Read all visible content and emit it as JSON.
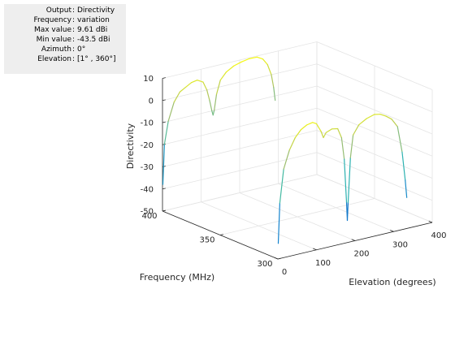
{
  "info": {
    "rows": [
      {
        "key": "Output",
        "value": "Directivity"
      },
      {
        "key": "Frequency",
        "value": "variation"
      },
      {
        "key": "Max value",
        "value": "9.61 dBi"
      },
      {
        "key": "Min value",
        "value": "-43.5 dBi"
      },
      {
        "key": "Azimuth",
        "value": "0°"
      },
      {
        "key": "Elevation",
        "value": "[1° , 360°]"
      }
    ]
  },
  "chart_data": {
    "type": "line",
    "subtype": "3d-line",
    "xlabel": "Elevation (degrees)",
    "ylabel": "Frequency (MHz)",
    "zlabel": "Directivity",
    "xlim": [
      0,
      400
    ],
    "ylim": [
      300,
      400
    ],
    "zlim": [
      -50,
      10
    ],
    "xticks": [
      "0",
      "100",
      "200",
      "300",
      "400"
    ],
    "yticks": [
      "300",
      "350",
      "400"
    ],
    "zticks": [
      "10",
      "0",
      "-10",
      "-20",
      "-30",
      "-40",
      "-50"
    ],
    "grid": true,
    "colormap": "parula",
    "series": [
      {
        "frequency": 300,
        "points": [
          [
            1,
            -43
          ],
          [
            5,
            -25
          ],
          [
            15,
            -10
          ],
          [
            30,
            -2
          ],
          [
            45,
            3
          ],
          [
            60,
            6
          ],
          [
            75,
            7.5
          ],
          [
            90,
            8
          ],
          [
            100,
            7
          ],
          [
            112,
            3
          ],
          [
            118,
            0
          ],
          [
            125,
            2
          ],
          [
            140,
            3
          ],
          [
            155,
            2.5
          ],
          [
            165,
            -2
          ],
          [
            172,
            -12
          ],
          [
            178,
            -32
          ],
          [
            180,
            -40
          ],
          [
            182,
            -32
          ],
          [
            188,
            -12
          ],
          [
            195,
            -2
          ],
          [
            210,
            2
          ],
          [
            230,
            4
          ],
          [
            250,
            5
          ],
          [
            265,
            4.5
          ],
          [
            280,
            3
          ],
          [
            295,
            1
          ],
          [
            310,
            -3
          ],
          [
            322,
            -15
          ],
          [
            330,
            -28
          ],
          [
            334,
            -36
          ]
        ]
      },
      {
        "frequency": 400,
        "points": [
          [
            1,
            -38
          ],
          [
            5,
            -20
          ],
          [
            15,
            -10
          ],
          [
            30,
            -2
          ],
          [
            45,
            2
          ],
          [
            60,
            3.5
          ],
          [
            75,
            5
          ],
          [
            90,
            5.5
          ],
          [
            105,
            4
          ],
          [
            115,
            0
          ],
          [
            122,
            -5
          ],
          [
            128,
            -10
          ],
          [
            131,
            -12
          ],
          [
            134,
            -10
          ],
          [
            140,
            -3
          ],
          [
            150,
            3
          ],
          [
            165,
            6
          ],
          [
            185,
            8
          ],
          [
            205,
            9
          ],
          [
            225,
            9.61
          ],
          [
            245,
            9.5
          ],
          [
            260,
            8
          ],
          [
            272,
            5
          ],
          [
            282,
            0
          ],
          [
            288,
            -6
          ],
          [
            292,
            -12
          ]
        ]
      }
    ]
  }
}
